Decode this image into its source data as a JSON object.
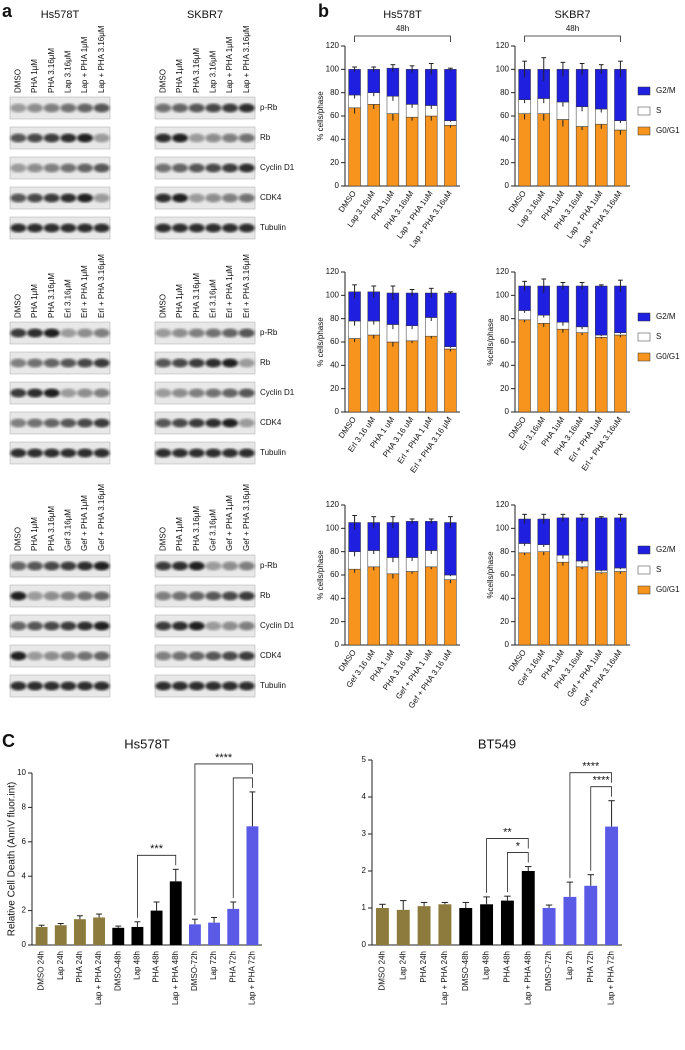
{
  "panel_labels": [
    "a",
    "b",
    "C"
  ],
  "blots": [
    {
      "panels": [
        {
          "title": "Hs578T",
          "lanes": [
            "DMSO",
            "PHA 1μM",
            "PHA 3.16μM",
            "Lap 3.16μM",
            "Lap + PHA 1μM",
            "Lap + PHA 3.16μM"
          ]
        },
        {
          "title": "SKBR7",
          "lanes": [
            "DMSO",
            "PHA 1μM",
            "PHA 3.16μM",
            "Lap 3.16μM",
            "Lap + PHA 1μM",
            "Lap + PHA 3.16μM"
          ]
        }
      ],
      "proteins": [
        "p-Rb",
        "Rb",
        "Cyclin D1",
        "CDK4",
        "Tubulin"
      ]
    },
    {
      "panels": [
        {
          "lanes": [
            "DMSO",
            "PHA 1μM",
            "PHA 3.16μM",
            "Erl 3.16μM",
            "Erl + PHA 1μM",
            "Erl + PHA 3.16μM"
          ]
        },
        {
          "lanes": [
            "DMSO",
            "PHA 1μM",
            "PHA 3.16μM",
            "Erl 3.16μM",
            "Erl + PHA 1μM",
            "Erl + PHA 3.16μM"
          ]
        }
      ],
      "proteins": [
        "p-Rb",
        "Rb",
        "Cyclin D1",
        "CDK4",
        "Tubulin"
      ]
    },
    {
      "panels": [
        {
          "lanes": [
            "DMSO",
            "PHA 1μM",
            "PHA 3.16μM",
            "Gef 3.16μM",
            "Gef + PHA 1μM",
            "Gef + PHA 3.16μM"
          ]
        },
        {
          "lanes": [
            "DMSO",
            "PHA 1μM",
            "PHA 3.16μM",
            "Gef 3.16μM",
            "Gef + PHA 1μM",
            "Gef + PHA 3.16μM"
          ]
        }
      ],
      "proteins": [
        "p-Rb",
        "Rb",
        "Cyclin D1",
        "CDK4",
        "Tubulin"
      ]
    }
  ],
  "chart_data": [
    {
      "type": "bar",
      "stacked": true,
      "title": "Hs578T",
      "annotation": "48h",
      "y_label": "% cells/phase",
      "categories": [
        "DMSO",
        "Lap 3.16uM",
        "PHA 1uM",
        "PHA 3.16uM",
        "Lap + PHA 1uM",
        "Lap + PHA 3.16uM"
      ],
      "series": [
        {
          "color": "#f7941d",
          "values": [
            67,
            70,
            62,
            59,
            60,
            52
          ],
          "errors": [
            5,
            4,
            6,
            3,
            4,
            2
          ]
        },
        {
          "color": "#ffffff",
          "values": [
            11,
            10,
            15,
            11,
            9,
            4
          ],
          "errors": [
            3,
            3,
            4,
            3,
            3,
            1
          ]
        },
        {
          "color": "#1f1fe0",
          "values": [
            22,
            20,
            24,
            30,
            31,
            44
          ],
          "errors": [
            2,
            2,
            3,
            3,
            5,
            1
          ]
        }
      ],
      "ylim": [
        0,
        120
      ],
      "yticks": [
        0,
        20,
        40,
        60,
        80,
        100,
        120
      ]
    },
    {
      "type": "bar",
      "stacked": true,
      "title": "SKBR7",
      "annotation": "48h",
      "legend": "right",
      "categories": [
        "DMSO",
        "Lap 3.16uM",
        "PHA 1uM",
        "PHA 3.16uM",
        "Lap + PHA 1uM",
        "Lap + PHA 3.16uM"
      ],
      "series": [
        {
          "name": "G0/G1",
          "color": "#f7941d",
          "values": [
            62,
            62,
            57,
            51,
            53,
            48
          ],
          "errors": [
            5,
            6,
            6,
            3,
            4,
            4
          ]
        },
        {
          "name": "S",
          "color": "#ffffff",
          "values": [
            12,
            13,
            15,
            17,
            13,
            8
          ],
          "errors": [
            3,
            4,
            4,
            4,
            3,
            2
          ]
        },
        {
          "name": "G2/M",
          "color": "#1f1fe0",
          "values": [
            26,
            25,
            28,
            32,
            34,
            44
          ],
          "errors": [
            7,
            10,
            6,
            5,
            4,
            7
          ]
        }
      ],
      "ylim": [
        0,
        120
      ],
      "yticks": [
        0,
        20,
        40,
        60,
        80,
        100,
        120
      ]
    },
    {
      "type": "bar",
      "stacked": true,
      "y_label": "% cells/phase",
      "categories": [
        "DMSO",
        "Erl 3.16 uM",
        "PHA 1 uM",
        "PHA 3.16 uM",
        "Erl + PHA 1 µM",
        "Erl + PHA 3.16 µM"
      ],
      "series": [
        {
          "color": "#f7941d",
          "values": [
            63,
            66,
            60,
            61,
            65,
            54
          ],
          "errors": [
            3,
            3,
            4,
            2,
            2,
            2
          ]
        },
        {
          "color": "#ffffff",
          "values": [
            15,
            12,
            15,
            13,
            16,
            2
          ],
          "errors": [
            4,
            3,
            4,
            3,
            3,
            1
          ]
        },
        {
          "color": "#1f1fe0",
          "values": [
            25,
            25,
            27,
            28,
            21,
            46
          ],
          "errors": [
            6,
            5,
            6,
            3,
            4,
            1
          ]
        }
      ],
      "ylim": [
        0,
        120
      ],
      "yticks": [
        0,
        20,
        40,
        60,
        80,
        100,
        120
      ]
    },
    {
      "type": "bar",
      "stacked": true,
      "y_label": "%cells/phase",
      "legend": "right",
      "categories": [
        "DMSO",
        "Erl 3.16uM",
        "PHA 1uM",
        "PHA 3.16uM",
        "Erl + PHA 1uM",
        "Erl + PHA 3.16uM"
      ],
      "series": [
        {
          "name": "G0/G1",
          "color": "#f7941d",
          "values": [
            79,
            76,
            71,
            68,
            64,
            66
          ],
          "errors": [
            2,
            3,
            3,
            2,
            1,
            2
          ]
        },
        {
          "name": "S",
          "color": "#ffffff",
          "values": [
            8,
            7,
            6,
            5,
            2,
            2
          ],
          "errors": [
            2,
            2,
            3,
            2,
            1,
            1
          ]
        },
        {
          "name": "G2/M",
          "color": "#1f1fe0",
          "values": [
            21,
            25,
            31,
            35,
            42,
            40
          ],
          "errors": [
            4,
            6,
            3,
            3,
            1,
            5
          ]
        }
      ],
      "ylim": [
        0,
        120
      ],
      "yticks": [
        0,
        20,
        40,
        60,
        80,
        100,
        120
      ]
    },
    {
      "type": "bar",
      "stacked": true,
      "y_label": "% cells/phase",
      "categories": [
        "DMSO",
        "Gef 3.16 uM",
        "PHA 1 uM",
        "PHA 3.16 uM",
        "Gef + PHA 1 uM",
        "Gef + PHA 3.16 uM"
      ],
      "series": [
        {
          "color": "#f7941d",
          "values": [
            65,
            67,
            61,
            63,
            67,
            56
          ],
          "errors": [
            3,
            3,
            4,
            2,
            2,
            3
          ]
        },
        {
          "color": "#ffffff",
          "values": [
            15,
            14,
            14,
            12,
            14,
            4
          ],
          "errors": [
            4,
            3,
            4,
            3,
            3,
            1
          ]
        },
        {
          "color": "#1f1fe0",
          "values": [
            25,
            24,
            30,
            31,
            25,
            45
          ],
          "errors": [
            6,
            5,
            5,
            2,
            2,
            5
          ]
        }
      ],
      "ylim": [
        0,
        120
      ],
      "yticks": [
        0,
        20,
        40,
        60,
        80,
        100,
        120
      ]
    },
    {
      "type": "bar",
      "stacked": true,
      "y_label": "%cells/phase",
      "legend": "right",
      "categories": [
        "DMSO",
        "Gef 3.16uM",
        "PHA 1uM",
        "PHA 3.16uM",
        "Gef + PHA 1uM",
        "Gef + PHA 3.16uM"
      ],
      "series": [
        {
          "name": "G0/G1",
          "color": "#f7941d",
          "values": [
            79,
            80,
            71,
            67,
            62,
            63
          ],
          "errors": [
            2,
            3,
            3,
            2,
            1,
            2
          ]
        },
        {
          "name": "S",
          "color": "#ffffff",
          "values": [
            8,
            6,
            6,
            5,
            2,
            3
          ],
          "errors": [
            2,
            2,
            3,
            2,
            1,
            1
          ]
        },
        {
          "name": "G2/M",
          "color": "#1f1fe0",
          "values": [
            21,
            22,
            32,
            37,
            45,
            43
          ],
          "errors": [
            4,
            4,
            3,
            3,
            1,
            3
          ]
        }
      ],
      "ylim": [
        0,
        120
      ],
      "yticks": [
        0,
        20,
        40,
        60,
        80,
        100,
        120
      ]
    },
    {
      "type": "bar",
      "title": "Hs578T",
      "y_label": "Relative Cell Death (AnnV fluor.int)",
      "categories": [
        "DMSO 24h",
        "Lap 24h",
        "PHA 24h",
        "Lap + PHA 24h",
        "DMSO-48h",
        "Lap 48h",
        "PHA 48h",
        "Lap + PHA 48h",
        "DMSO-72h",
        "Lap 72h",
        "PHA 72h",
        "Lap + PHA 72h"
      ],
      "values": [
        1.05,
        1.15,
        1.5,
        1.6,
        1.0,
        1.05,
        2.0,
        3.7,
        1.2,
        1.3,
        2.1,
        6.9
      ],
      "errors": [
        0.1,
        0.1,
        0.2,
        0.2,
        0.1,
        0.3,
        0.5,
        0.7,
        0.3,
        0.3,
        0.4,
        2.0
      ],
      "colors": [
        "#8c7b3c",
        "#8c7b3c",
        "#8c7b3c",
        "#8c7b3c",
        "#000000",
        "#000000",
        "#000000",
        "#000000",
        "#5a5ae6",
        "#5a5ae6",
        "#5a5ae6",
        "#5a5ae6"
      ],
      "significance": [
        {
          "between": [
            5,
            7
          ],
          "label": "***"
        },
        {
          "between": [
            10,
            11
          ]
        },
        {
          "between": [
            8,
            11
          ],
          "label": "****"
        }
      ],
      "ylim": [
        0,
        10
      ],
      "yticks": [
        0,
        2,
        4,
        6,
        8,
        10
      ]
    },
    {
      "type": "bar",
      "title": "BT549",
      "categories": [
        "DMSO 24h",
        "Lap 24h",
        "PHA 24h",
        "Lap + PHA 24h",
        "DMSO-48h",
        "Lap 48h",
        "PHA 48h",
        "Lap + PHA 48h",
        "DMSO-72h",
        "Lap 72h",
        "PHA 72h",
        "Lap + PHA 72h"
      ],
      "values": [
        1.0,
        0.95,
        1.05,
        1.1,
        1.0,
        1.1,
        1.2,
        2.0,
        1.0,
        1.3,
        1.6,
        3.2
      ],
      "errors": [
        0.1,
        0.25,
        0.1,
        0.05,
        0.15,
        0.2,
        0.12,
        0.12,
        0.08,
        0.4,
        0.3,
        0.7
      ],
      "colors": [
        "#8c7b3c",
        "#8c7b3c",
        "#8c7b3c",
        "#8c7b3c",
        "#000000",
        "#000000",
        "#000000",
        "#000000",
        "#5a5ae6",
        "#5a5ae6",
        "#5a5ae6",
        "#5a5ae6"
      ],
      "significance": [
        {
          "between": [
            6,
            7
          ],
          "label": "*"
        },
        {
          "between": [
            5,
            7
          ],
          "label": "**"
        },
        {
          "between": [
            10,
            11
          ],
          "label": "****"
        },
        {
          "between": [
            9,
            11
          ],
          "label": "****"
        }
      ],
      "ylim": [
        0,
        5
      ],
      "yticks": [
        0,
        1,
        2,
        3,
        4,
        5
      ]
    }
  ]
}
